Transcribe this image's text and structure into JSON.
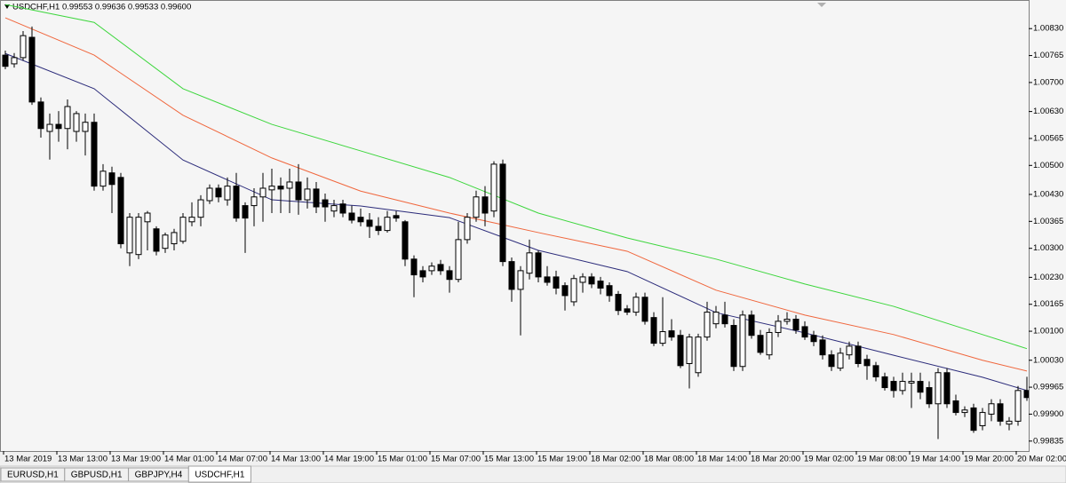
{
  "chart_data": {
    "type": "candlestick",
    "title": "USDCHF,H1  0.99553 0.99636 0.99533 0.99600",
    "categories": [
      "13 Mar 2019",
      null,
      null,
      null,
      null,
      null,
      "13 Mar 13:00",
      null,
      null,
      null,
      null,
      null,
      "13 Mar 19:00",
      null,
      null,
      null,
      null,
      null,
      "14 Mar 01:00",
      null,
      null,
      null,
      null,
      null,
      "14 Mar 07:00",
      null,
      null,
      null,
      null,
      null,
      "14 Mar 13:00",
      null,
      null,
      null,
      null,
      null,
      "14 Mar 19:00",
      null,
      null,
      null,
      null,
      null,
      "15 Mar 01:00",
      null,
      null,
      null,
      null,
      null,
      "15 Mar 07:00",
      null,
      null,
      null,
      null,
      null,
      "15 Mar 13:00",
      null,
      null,
      null,
      null,
      null,
      "15 Mar 19:00",
      null,
      null,
      null,
      null,
      null,
      "18 Mar 02:00",
      null,
      null,
      null,
      null,
      null,
      "18 Mar 08:00",
      null,
      null,
      null,
      null,
      null,
      "18 Mar 14:00",
      null,
      null,
      null,
      null,
      null,
      "18 Mar 20:00",
      null,
      null,
      null,
      null,
      null,
      "19 Mar 02:00",
      null,
      null,
      null,
      null,
      null,
      "19 Mar 08:00",
      null,
      null,
      null,
      null,
      null,
      "19 Mar 14:00",
      null,
      null,
      null,
      null,
      null,
      "19 Mar 20:00",
      null,
      null,
      null,
      null,
      null,
      "20 Mar 02:00",
      null
    ],
    "open": [
      1.00766,
      1.00745,
      1.0076,
      1.00809,
      1.00653,
      1.00582,
      1.00599,
      1.00589,
      1.00582,
      1.00582,
      1.00604,
      1.0045,
      1.00482,
      1.00471,
      1.00289,
      1.00285,
      1.00364,
      1.00347,
      1.003,
      1.00311,
      1.00317,
      1.00364,
      1.00375,
      1.00415,
      1.00445,
      1.00417,
      1.0045,
      1.00403,
      1.00403,
      1.00424,
      1.00441,
      1.0045,
      1.00445,
      1.0046,
      1.00417,
      1.00443,
      1.00417,
      1.0039,
      1.00407,
      1.00385,
      1.00375,
      1.00368,
      1.00353,
      1.00343,
      1.00379,
      1.00364,
      1.00274,
      1.00246,
      1.00246,
      1.00261,
      1.00246,
      1.00225,
      1.00321,
      1.00375,
      1.00424,
      1.0039,
      1.00503,
      1.00268,
      1.00201,
      1.0024,
      1.00289,
      1.00231,
      1.00231,
      1.0021,
      1.00171,
      1.00218,
      1.00231,
      1.00221,
      1.0021,
      1.00189,
      1.00154,
      1.00146,
      1.00182,
      1.00133,
      1.00071,
      1.00101,
      1.0009,
      1.00022,
      1.0,
      1.00086,
      1.00118,
      1.00139,
      1.00114,
      1.00015,
      1.00139,
      1.0009,
      1.00043,
      1.00097,
      1.00124,
      1.00129,
      1.00111,
      1.0009,
      1.00079,
      1.00043,
      1.00011,
      1.00043,
      1.00064,
      1.00032,
      1.00017,
      0.9999,
      0.99979,
      0.99957,
      0.99975,
      0.99979,
      0.99964,
      0.99925,
      1.0,
      0.99932,
      0.99904,
      0.99915,
      0.99872,
      0.999,
      0.99925,
      0.99876,
      0.99883,
      0.99957
    ],
    "high": [
      1.00777,
      1.00771,
      1.00824,
      1.00835,
      1.00664,
      1.00625,
      1.00631,
      1.00659,
      1.00631,
      1.00625,
      1.00625,
      1.00503,
      1.00497,
      1.00482,
      1.00385,
      1.00385,
      1.0039,
      1.00353,
      1.00338,
      1.00347,
      1.00385,
      1.00411,
      1.00428,
      1.00454,
      1.00454,
      1.00471,
      1.00482,
      1.00411,
      1.00445,
      1.00482,
      1.00492,
      1.00471,
      1.00492,
      1.00503,
      1.00471,
      1.0046,
      1.00432,
      1.00417,
      1.00417,
      1.00403,
      1.00396,
      1.00385,
      1.00375,
      1.0039,
      1.0039,
      1.00368,
      1.00283,
      1.00257,
      1.00266,
      1.00272,
      1.00257,
      1.00364,
      1.00385,
      1.00439,
      1.0045,
      1.0051,
      1.00514,
      1.00278,
      1.00257,
      1.00321,
      1.00295,
      1.00257,
      1.00246,
      1.00218,
      1.00236,
      1.0024,
      1.0024,
      1.00231,
      1.00218,
      1.00197,
      1.00163,
      1.00193,
      1.00193,
      1.00146,
      1.00182,
      1.00129,
      1.00103,
      1.00094,
      1.00094,
      1.00171,
      1.00161,
      1.00171,
      1.00129,
      1.0015,
      1.0015,
      1.00103,
      1.00107,
      1.00139,
      1.00146,
      1.00139,
      1.00124,
      1.00101,
      1.0009,
      1.00054,
      1.0006,
      1.00075,
      1.00075,
      1.00043,
      1.00026,
      1.0,
      0.9999,
      1.0,
      1.0,
      1.0,
      0.99979,
      1.00011,
      1.00011,
      0.99947,
      0.99919,
      0.99925,
      0.99915,
      0.99936,
      0.99936,
      0.99893,
      0.99968,
      0.9999
    ],
    "low": [
      1.00732,
      1.00736,
      1.00753,
      1.00646,
      1.00567,
      1.00514,
      1.00557,
      1.00539,
      1.00557,
      1.00524,
      1.00439,
      1.00439,
      1.00385,
      1.003,
      1.00257,
      1.00274,
      1.00295,
      1.00283,
      1.00289,
      1.00295,
      1.00311,
      1.00353,
      1.00353,
      1.00407,
      1.00411,
      1.00403,
      1.00364,
      1.00289,
      1.00353,
      1.00364,
      1.00385,
      1.00385,
      1.00385,
      1.00381,
      1.00396,
      1.00385,
      1.00364,
      1.00375,
      1.00375,
      1.0036,
      1.00353,
      1.00325,
      1.00332,
      1.00338,
      1.00364,
      1.00257,
      1.00182,
      1.00218,
      1.00236,
      1.00236,
      1.00193,
      1.00218,
      1.00311,
      1.00364,
      1.00353,
      1.00375,
      1.00257,
      1.00171,
      1.0009,
      1.00225,
      1.00218,
      1.0021,
      1.00189,
      1.0015,
      1.00161,
      1.00193,
      1.00204,
      1.00189,
      1.00171,
      1.00139,
      1.00139,
      1.00137,
      1.00116,
      1.00064,
      1.00064,
      1.00077,
      1.00011,
      0.99962,
      0.9999,
      1.00077,
      1.00107,
      1.00109,
      1.00004,
      1.00004,
      1.00082,
      1.00043,
      1.00032,
      1.00086,
      1.00116,
      1.00094,
      1.00079,
      1.00064,
      1.00032,
      1.00004,
      1.00004,
      1.00032,
      1.00013,
      0.99983,
      0.99979,
      0.99957,
      0.9994,
      0.99947,
      0.99915,
      0.99936,
      0.99915,
      0.9984,
      0.99915,
      0.99897,
      0.99893,
      0.99855,
      0.99861,
      0.99883,
      0.99872,
      0.99861,
      0.99872,
      0.99932
    ],
    "close": [
      1.00739,
      1.0076,
      1.00813,
      1.00653,
      1.00589,
      1.00599,
      1.00589,
      1.00642,
      1.00625,
      1.00604,
      1.0045,
      1.00486,
      1.00454,
      1.00311,
      1.00375,
      1.00375,
      1.00385,
      1.00293,
      1.00332,
      1.00338,
      1.00375,
      1.00375,
      1.00417,
      1.00445,
      1.00424,
      1.0045,
      1.00373,
      1.00373,
      1.00424,
      1.00445,
      1.0045,
      1.00443,
      1.0046,
      1.00417,
      1.00443,
      1.004,
      1.004,
      1.00403,
      1.00385,
      1.00368,
      1.00364,
      1.00353,
      1.00343,
      1.00375,
      1.00373,
      1.00274,
      1.00236,
      1.00231,
      1.00257,
      1.00246,
      1.00225,
      1.00321,
      1.00375,
      1.00424,
      1.00385,
      1.00503,
      1.00268,
      1.00201,
      1.00246,
      1.00289,
      1.00231,
      1.00218,
      1.00204,
      1.00186,
      1.00227,
      1.00231,
      1.00214,
      1.00204,
      1.00186,
      1.0015,
      1.00146,
      1.00182,
      1.00124,
      1.00071,
      1.00099,
      1.00086,
      1.00017,
      1.00086,
      1.00086,
      1.00146,
      1.00146,
      1.00118,
      1.00015,
      1.00139,
      1.0009,
      1.00049,
      1.00097,
      1.00124,
      1.00129,
      1.00103,
      1.00086,
      1.00075,
      1.00043,
      1.00015,
      1.00047,
      1.00064,
      1.00022,
      1.00017,
      0.9999,
      0.99964,
      0.99957,
      0.99979,
      0.99979,
      0.99953,
      0.99925,
      1.0,
      0.99925,
      0.99904,
      0.9991,
      0.99861,
      0.99904,
      0.99925,
      0.99883,
      0.99883,
      0.99957,
      0.9994
    ],
    "up_color": "#ffffff",
    "down_color": "#000000",
    "edge_color": "#000000",
    "lines": {
      "x": [
        0,
        10,
        20,
        30,
        40,
        50,
        60,
        70,
        80,
        90,
        100,
        110,
        115
      ],
      "series": [
        {
          "color": "#3cd63c",
          "values": [
            1.00888,
            1.00845,
            1.00685,
            1.00599,
            1.00535,
            1.00471,
            1.00385,
            1.00325,
            1.00274,
            1.00214,
            1.0016,
            1.00092,
            1.00058
          ]
        },
        {
          "color": "#f0663c",
          "values": [
            1.00856,
            1.00766,
            1.00621,
            1.00518,
            1.00438,
            1.00385,
            1.00338,
            1.00293,
            1.00199,
            1.00139,
            1.00092,
            1.0003,
            1.00004
          ]
        },
        {
          "color": "#2b2b7a",
          "values": [
            1.0077,
            1.00685,
            1.00513,
            1.00417,
            1.00402,
            1.00374,
            1.00295,
            1.00244,
            1.00145,
            1.00096,
            1.00042,
            0.99989,
            0.99957
          ]
        }
      ]
    },
    "ylim": [
      0.99811,
      1.00899
    ],
    "yticks": [
      {
        "value": 1.0083,
        "label": "1.00830"
      },
      1.00765,
      {
        "value": 1.007,
        "label": "1.00700"
      },
      {
        "value": 1.0063,
        "label": "1.00630"
      },
      1.00565,
      {
        "value": 1.005,
        "label": "1.00500"
      },
      {
        "value": 1.0043,
        "label": "1.00430"
      },
      1.00365,
      {
        "value": 1.003,
        "label": "1.00300"
      },
      {
        "value": 1.0023,
        "label": "1.00230"
      },
      1.00165,
      {
        "value": 1.001,
        "label": "1.00100"
      },
      {
        "value": 1.0003,
        "label": "1.00030"
      },
      0.99965,
      {
        "value": 0.999,
        "label": "0.99900"
      },
      0.99835
    ],
    "grid": false
  },
  "tabs": [
    "EURUSD,H1",
    "GBPUSD,H1",
    "GBPJPY,H4",
    "USDCHF,H1"
  ],
  "active_tab": 3
}
